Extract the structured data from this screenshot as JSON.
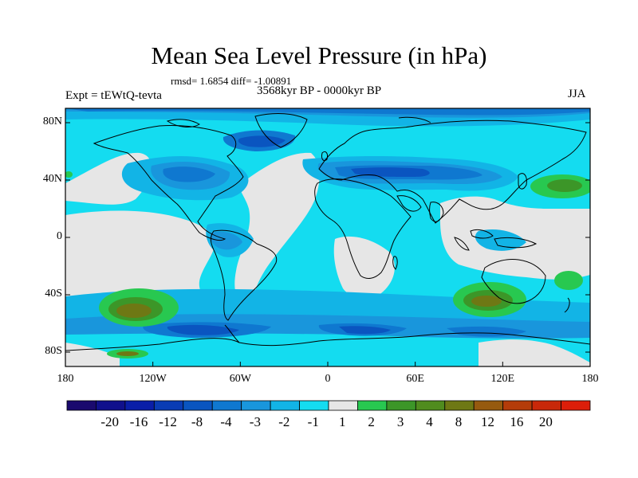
{
  "title": "Mean Sea Level Pressure (in hPa)",
  "stats_text": "rmsd= 1.6854 diff= -1.00891",
  "period_text": "3568kyr BP - 0000kyr BP",
  "experiment_text": "Expt = tEWtQ-tevta",
  "season_text": "JJA",
  "map": {
    "lat_range": [
      -90,
      90
    ],
    "lon_range": [
      -180,
      180
    ],
    "y_ticks": [
      {
        "lat": 80,
        "label": "80N"
      },
      {
        "lat": 40,
        "label": "40N"
      },
      {
        "lat": 0,
        "label": "0"
      },
      {
        "lat": -40,
        "label": "40S"
      },
      {
        "lat": -80,
        "label": "80S"
      }
    ],
    "x_ticks": [
      {
        "lon": -180,
        "label": "180"
      },
      {
        "lon": -120,
        "label": "120W"
      },
      {
        "lon": -60,
        "label": "60W"
      },
      {
        "lon": 0,
        "label": "0"
      },
      {
        "lon": 60,
        "label": "60E"
      },
      {
        "lon": 120,
        "label": "120E"
      },
      {
        "lon": 180,
        "label": "180"
      }
    ]
  },
  "colorbar": {
    "colors": [
      "#1a0a6e",
      "#10108c",
      "#0a1ea8",
      "#0a3cb4",
      "#0a55c0",
      "#0f78d0",
      "#1996dc",
      "#12b4e6",
      "#14dcf0",
      "#e6e6e6",
      "#28c850",
      "#3c9628",
      "#508c1e",
      "#6e7814",
      "#965a0f",
      "#b43c0a",
      "#c8280a",
      "#dc1e0a"
    ],
    "labels": [
      "-20",
      "-16",
      "-12",
      "-8",
      "-4",
      "-3",
      "-2",
      "-1",
      "1",
      "2",
      "3",
      "4",
      "8",
      "12",
      "16",
      "20"
    ]
  },
  "regions": [
    {
      "name": "south-pacific-high",
      "lon": -140,
      "lat": -45,
      "rx": 25,
      "ry": 10,
      "level": 2
    },
    {
      "name": "south-indian-high",
      "lon": 110,
      "lat": -45,
      "rx": 22,
      "ry": 9,
      "level": 2
    },
    {
      "name": "north-pacific-high",
      "lon": 160,
      "lat": 35,
      "rx": 18,
      "ry": 6,
      "level": 2
    },
    {
      "name": "east-australia-high",
      "lon": 155,
      "lat": -32,
      "rx": 7,
      "ry": 3,
      "level": 1
    },
    {
      "name": "antarctic-ridge",
      "lon": -140,
      "lat": -82,
      "rx": 12,
      "ry": 2,
      "level": 2
    }
  ]
}
